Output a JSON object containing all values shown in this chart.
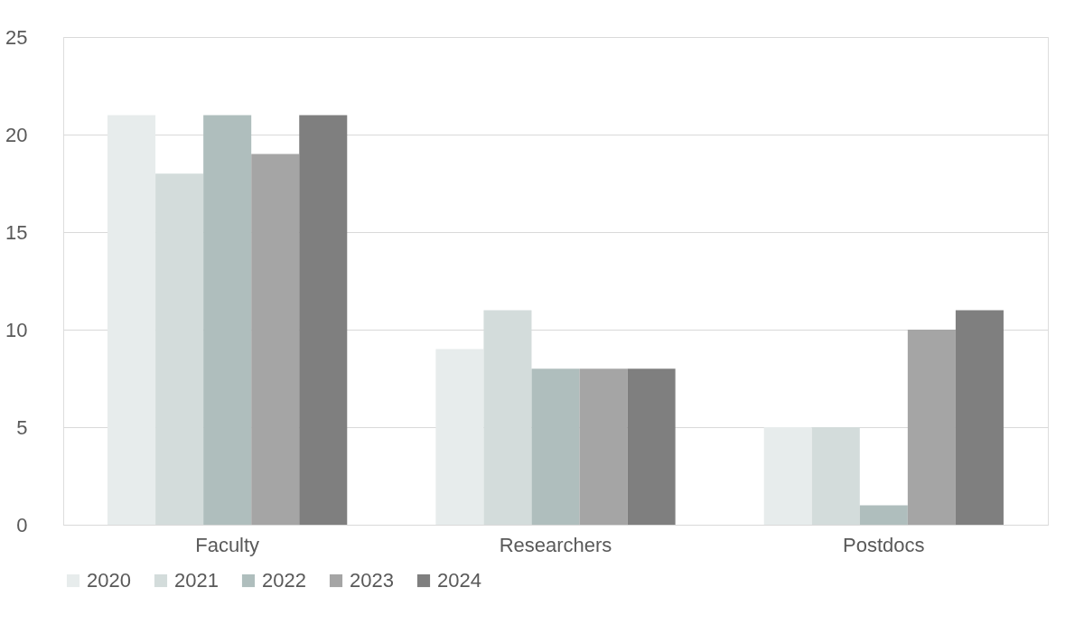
{
  "chart_data": {
    "type": "bar",
    "categories": [
      "Faculty",
      "Researchers",
      "Postdocs"
    ],
    "series": [
      {
        "name": "2020",
        "color": "#e7ecec",
        "values": [
          21,
          9,
          5
        ]
      },
      {
        "name": "2021",
        "color": "#d3dcdb",
        "values": [
          18,
          11,
          5
        ]
      },
      {
        "name": "2022",
        "color": "#afbebd",
        "values": [
          21,
          8,
          1
        ]
      },
      {
        "name": "2023",
        "color": "#a5a5a5",
        "values": [
          19,
          8,
          10
        ]
      },
      {
        "name": "2024",
        "color": "#7f7f7f",
        "values": [
          21,
          8,
          11
        ]
      }
    ],
    "ylim": [
      0,
      25
    ],
    "yticks": [
      0,
      5,
      10,
      15,
      20,
      25
    ],
    "grid": "y",
    "legend": "bottom"
  }
}
